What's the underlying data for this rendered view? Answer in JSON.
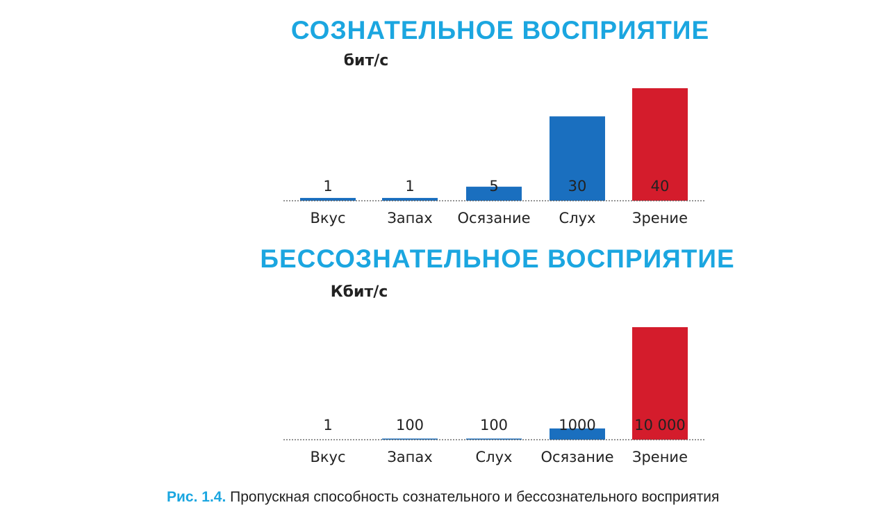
{
  "chart_data": [
    {
      "type": "bar",
      "title": "СОЗНАТЕЛЬНОЕ ВОСПРИЯТИЕ",
      "y_label": "бит/с",
      "categories": [
        "Вкус",
        "Запах",
        "Осязание",
        "Слух",
        "Зрение"
      ],
      "values": [
        1,
        1,
        5,
        30,
        40
      ],
      "colors": [
        "#1a6fbf",
        "#1a6fbf",
        "#1a6fbf",
        "#1a6fbf",
        "#d41c2c"
      ],
      "ylim": [
        0,
        40
      ]
    },
    {
      "type": "bar",
      "title": "БЕССОЗНАТЕЛЬНОЕ ВОСПРИЯТИЕ",
      "y_label": "Кбит/с",
      "categories": [
        "Вкус",
        "Запах",
        "Слух",
        "Осязание",
        "Зрение"
      ],
      "values": [
        1,
        100,
        100,
        1000,
        10000
      ],
      "value_labels": [
        "1",
        "100",
        "100",
        "1000",
        "10 000"
      ],
      "colors": [
        "#1a6fbf",
        "#1a6fbf",
        "#1a6fbf",
        "#1a6fbf",
        "#d41c2c"
      ],
      "ylim": [
        0,
        10000
      ]
    }
  ],
  "caption": {
    "label": "Рис. 1.4.",
    "text": "Пропускная способность сознательного и бессознательного восприятия"
  }
}
